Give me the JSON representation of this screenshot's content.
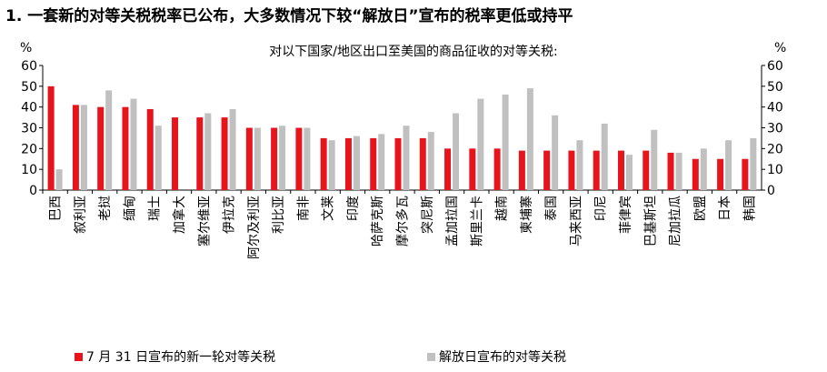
{
  "title": "1. 一套新的对等关税税率已公布，大多数情况下较“解放日”宣布的税率更低或持平",
  "chart_data": {
    "type": "bar",
    "title": "对以下国家/地区出口至美国的商品征收的对等关税:",
    "left_unit": "%",
    "right_unit": "%",
    "ylim": [
      0,
      60
    ],
    "yticks": [
      0,
      10,
      20,
      30,
      40,
      50,
      60
    ],
    "categories": [
      "巴西",
      "叙利亚",
      "老挝",
      "缅甸",
      "瑞士",
      "加拿大",
      "塞尔维亚",
      "伊拉克",
      "阿尔及利亚",
      "利比亚",
      "南非",
      "文莱",
      "印度",
      "哈萨克斯",
      "摩尔多瓦",
      "突尼斯",
      "孟加拉国",
      "斯里兰卡",
      "越南",
      "柬埔寨",
      "泰国",
      "马来西亚",
      "印尼",
      "菲律宾",
      "巴基斯坦",
      "尼加拉瓜",
      "欧盟",
      "日本",
      "韩国"
    ],
    "series": [
      {
        "name": "7 月 31 日宣布的新一轮对等关税",
        "color": "#e8141b",
        "values": [
          50,
          41,
          40,
          40,
          39,
          35,
          35,
          35,
          30,
          30,
          30,
          25,
          25,
          25,
          25,
          25,
          20,
          20,
          20,
          19,
          19,
          19,
          19,
          19,
          19,
          18,
          15,
          15,
          15
        ]
      },
      {
        "name": "解放日宣布的对等关税",
        "color": "#c0c0c0",
        "values": [
          10,
          41,
          48,
          44,
          31,
          null,
          37,
          39,
          30,
          31,
          30,
          24,
          26,
          27,
          31,
          28,
          37,
          44,
          46,
          49,
          36,
          24,
          32,
          17,
          29,
          18,
          20,
          24,
          25
        ]
      }
    ],
    "grid": false,
    "legend": "bottom"
  }
}
